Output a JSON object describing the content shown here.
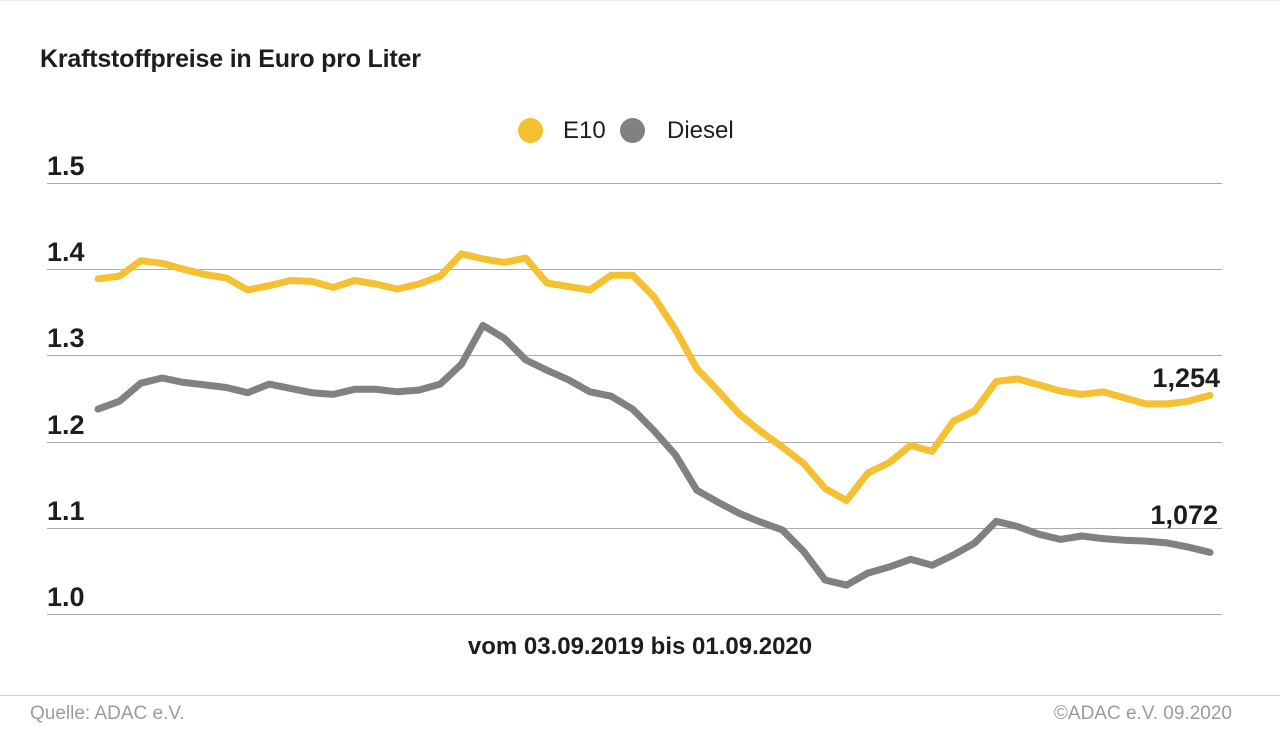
{
  "title": "Kraftstoffpreise in Euro pro Liter",
  "legend": {
    "e10": "E10",
    "diesel": "Diesel"
  },
  "y_axis": {
    "ticks": [
      "1.5",
      "1.4",
      "1.3",
      "1.2",
      "1.1",
      "1.0"
    ]
  },
  "end_labels": {
    "e10": "1,254",
    "diesel": "1,072"
  },
  "caption": "vom 03.09.2019 bis 01.09.2020",
  "footer": {
    "source": "Quelle: ADAC e.V.",
    "copyright": "©ADAC e.V. 09.2020"
  },
  "colors": {
    "grid": "#ababab",
    "text": "#1d1d1b",
    "muted_text": "#9b9b9b"
  },
  "chart_data": {
    "type": "line",
    "title": "Kraftstoffpreise in Euro pro Liter",
    "ylabel": "Euro pro Liter",
    "ylim": [
      1.0,
      1.5
    ],
    "y_ticks": [
      1.5,
      1.4,
      1.3,
      1.2,
      1.1,
      1.0
    ],
    "grid": "horizontal",
    "legend_position": "top-center",
    "x_range": {
      "from": "03.09.2019",
      "to": "01.09.2020",
      "interval": "weekly",
      "points": 53
    },
    "series": [
      {
        "id": "e10",
        "name": "E10",
        "color": "#F5C133",
        "last_value_label": "1,254",
        "values": [
          1.389,
          1.392,
          1.41,
          1.407,
          1.4,
          1.394,
          1.39,
          1.376,
          1.381,
          1.387,
          1.386,
          1.379,
          1.387,
          1.383,
          1.377,
          1.383,
          1.392,
          1.418,
          1.412,
          1.408,
          1.413,
          1.384,
          1.38,
          1.376,
          1.393,
          1.393,
          1.368,
          1.33,
          1.285,
          1.259,
          1.232,
          1.212,
          1.194,
          1.175,
          1.146,
          1.132,
          1.164,
          1.176,
          1.196,
          1.189,
          1.224,
          1.236,
          1.27,
          1.273,
          1.266,
          1.259,
          1.255,
          1.258,
          1.251,
          1.244,
          1.244,
          1.247,
          1.254
        ]
      },
      {
        "id": "diesel",
        "name": "Diesel",
        "color": "#818181",
        "last_value_label": "1,072",
        "values": [
          1.238,
          1.247,
          1.268,
          1.274,
          1.269,
          1.266,
          1.263,
          1.257,
          1.267,
          1.262,
          1.257,
          1.255,
          1.261,
          1.261,
          1.258,
          1.26,
          1.267,
          1.29,
          1.335,
          1.32,
          1.295,
          1.283,
          1.272,
          1.258,
          1.253,
          1.238,
          1.213,
          1.185,
          1.144,
          1.13,
          1.117,
          1.107,
          1.098,
          1.073,
          1.04,
          1.034,
          1.048,
          1.055,
          1.064,
          1.057,
          1.069,
          1.083,
          1.108,
          1.102,
          1.093,
          1.087,
          1.091,
          1.088,
          1.086,
          1.085,
          1.083,
          1.078,
          1.072
        ]
      }
    ]
  }
}
